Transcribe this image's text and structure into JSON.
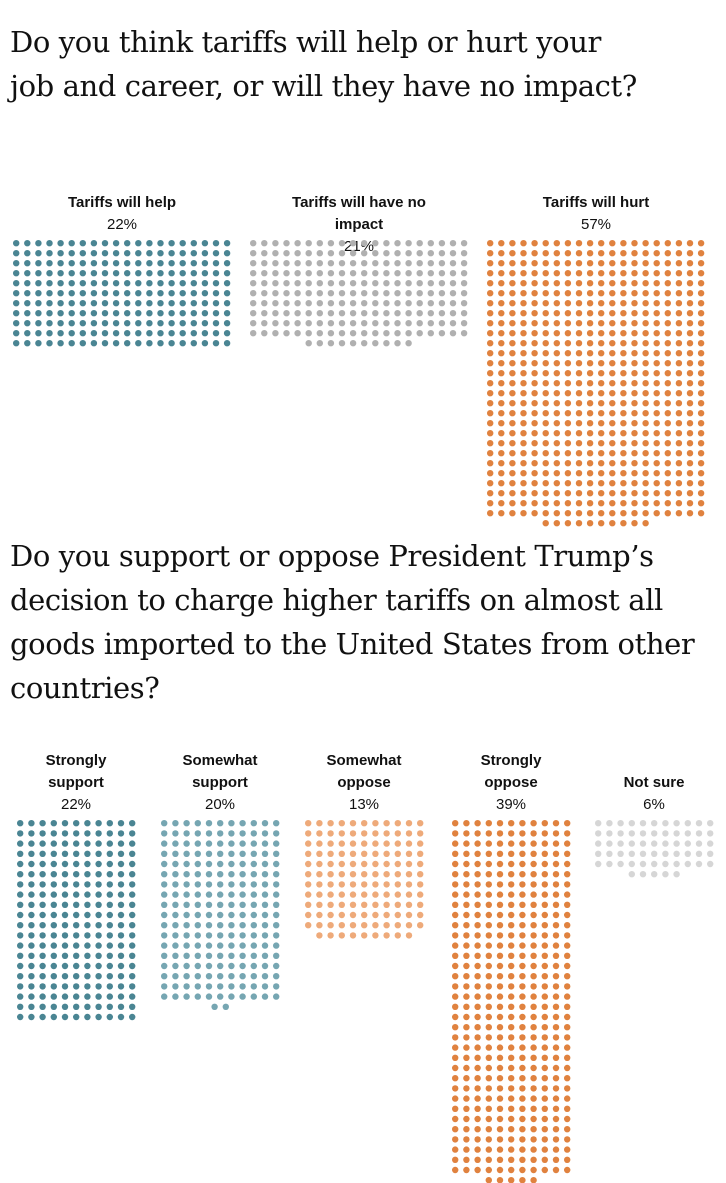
{
  "chart_data": [
    {
      "type": "dot_matrix",
      "title": "Do you think tariffs will help or hurt your job and career, or will they have no impact?",
      "categories": [
        "Tariffs will help",
        "Tariffs will have no impact",
        "Tariffs will hurt"
      ],
      "values": [
        22,
        21,
        57
      ],
      "value_labels": [
        "22%",
        "21%",
        "57%"
      ],
      "colors": [
        "#4a8593",
        "#b0b0b0",
        "#e0823f"
      ]
    },
    {
      "type": "dot_matrix",
      "title": "Do you support or oppose President Trump’s decision to charge higher tariffs on almost all goods imported to the United States from other countries?",
      "categories": [
        [
          "Strongly",
          "support"
        ],
        [
          "Somewhat",
          "support"
        ],
        [
          "Somewhat",
          "oppose"
        ],
        [
          "Strongly",
          "oppose"
        ],
        [
          "Not sure"
        ]
      ],
      "values": [
        22,
        20,
        13,
        39,
        6
      ],
      "value_labels": [
        "22%",
        "20%",
        "13%",
        "39%",
        "6%"
      ],
      "colors": [
        "#4a8593",
        "#76a6b2",
        "#eeaa7a",
        "#e0823f",
        "#d6d6d6"
      ]
    }
  ]
}
